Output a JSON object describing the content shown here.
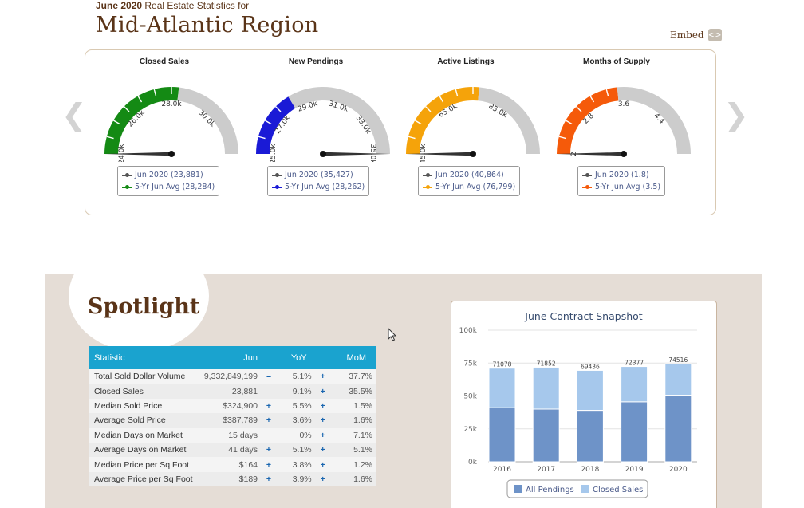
{
  "header": {
    "subtitle_bold": "June 2020",
    "subtitle_rest": "Real Estate Statistics for",
    "title": "Mid-Atlantic Region"
  },
  "embed": {
    "label": "Embed",
    "icon": "embed-code-icon"
  },
  "nav": {
    "prev_icon": "chevron-left-icon",
    "next_icon": "chevron-right-icon",
    "prev_glyph": "❮",
    "next_glyph": "❯"
  },
  "colors": {
    "brand_brown": "#5a3418",
    "table_header": "#1aa3cf",
    "gauge_gray": "#cccccc",
    "all_pendings": "#6e93c8",
    "closed_sales": "#a6c8ec"
  },
  "gauges": [
    {
      "title": "Closed Sales",
      "color": "#148a14",
      "min": 24000,
      "max": 32000,
      "avg": 28284,
      "needle": 23881,
      "ticks": [
        {
          "value": 24000,
          "label": "24.0k"
        },
        {
          "value": 26000,
          "label": "26.0k"
        },
        {
          "value": 28000,
          "label": "28.0k"
        },
        {
          "value": 30000,
          "label": "30.0k"
        }
      ],
      "legend": {
        "current": "Jun 2020 (23,881)",
        "average": "5-Yr Jun Avg (28,284)"
      }
    },
    {
      "title": "New Pendings",
      "color": "#1a1ad6",
      "min": 25000,
      "max": 35000,
      "avg": 28262,
      "needle": 35427,
      "ticks": [
        {
          "value": 25000,
          "label": "25.0k"
        },
        {
          "value": 27000,
          "label": "27.0k"
        },
        {
          "value": 29000,
          "label": "29.0k"
        },
        {
          "value": 31000,
          "label": "31.0k"
        },
        {
          "value": 33000,
          "label": "33.0k"
        },
        {
          "value": 35000,
          "label": "35.0k"
        }
      ],
      "legend": {
        "current": "Jun 2020 (35,427)",
        "average": "5-Yr Jun Avg (28,262)"
      }
    },
    {
      "title": "Active Listings",
      "color": "#f5a30a",
      "min": 45000,
      "max": 105000,
      "avg": 76799,
      "needle": 40864,
      "ticks": [
        {
          "value": 45000,
          "label": "45.0k"
        },
        {
          "value": 65000,
          "label": "65.0k"
        },
        {
          "value": 85000,
          "label": "85.0k"
        }
      ],
      "legend": {
        "current": "Jun 2020 (40,864)",
        "average": "5-Yr Jun Avg (76,799)"
      }
    },
    {
      "title": "Months of Supply",
      "color": "#f55a0a",
      "min": 2,
      "max": 5.2,
      "avg": 3.5,
      "needle": 1.8,
      "ticks": [
        {
          "value": 2,
          "label": "2"
        },
        {
          "value": 2.8,
          "label": "2.8"
        },
        {
          "value": 3.6,
          "label": "3.6"
        },
        {
          "value": 4.4,
          "label": "4.4"
        }
      ],
      "legend": {
        "current": "Jun 2020 (1.8)",
        "average": "5-Yr Jun Avg (3.5)"
      }
    }
  ],
  "spotlight": {
    "title": "Spotlight",
    "columns": [
      "Statistic",
      "Jun",
      "YoY",
      "MoM"
    ],
    "rows": [
      {
        "label": "Total Sold Dollar Volume",
        "jun": "9,332,849,199",
        "yoy_sign": "–",
        "yoy": "5.1%",
        "mom_sign": "+",
        "mom": "37.7%"
      },
      {
        "label": "Closed Sales",
        "jun": "23,881",
        "yoy_sign": "–",
        "yoy": "9.1%",
        "mom_sign": "+",
        "mom": "35.5%"
      },
      {
        "label": "Median Sold Price",
        "jun": "$324,900",
        "yoy_sign": "+",
        "yoy": "5.5%",
        "mom_sign": "+",
        "mom": "1.5%"
      },
      {
        "label": "Average Sold Price",
        "jun": "$387,789",
        "yoy_sign": "+",
        "yoy": "3.6%",
        "mom_sign": "+",
        "mom": "1.6%"
      },
      {
        "label": "Median Days on Market",
        "jun": "15 days",
        "yoy_sign": "",
        "yoy": "0%",
        "mom_sign": "+",
        "mom": "7.1%"
      },
      {
        "label": "Average Days on Market",
        "jun": "41 days",
        "yoy_sign": "+",
        "yoy": "5.1%",
        "mom_sign": "+",
        "mom": "5.1%"
      },
      {
        "label": "Median Price per Sq Foot",
        "jun": "$164",
        "yoy_sign": "+",
        "yoy": "3.8%",
        "mom_sign": "+",
        "mom": "1.2%"
      },
      {
        "label": "Average Price per Sq Foot",
        "jun": "$189",
        "yoy_sign": "+",
        "yoy": "3.9%",
        "mom_sign": "+",
        "mom": "1.6%"
      }
    ]
  },
  "chart_data": {
    "type": "bar",
    "title": "June Contract Snapshot",
    "categories": [
      "2016",
      "2017",
      "2018",
      "2019",
      "2020"
    ],
    "series": [
      {
        "name": "All Pendings",
        "values": [
          71078,
          71852,
          69436,
          72377,
          74516
        ]
      },
      {
        "name": "Closed Sales",
        "values": [
          41000,
          40000,
          39000,
          45500,
          50500
        ]
      }
    ],
    "totals_labels": [
      "71078",
      "71852",
      "69436",
      "72377",
      "74516"
    ],
    "yticks": [
      {
        "value": 0,
        "label": "0k"
      },
      {
        "value": 25000,
        "label": "25k"
      },
      {
        "value": 50000,
        "label": "50k"
      },
      {
        "value": 75000,
        "label": "75k"
      },
      {
        "value": 100000,
        "label": "100k"
      }
    ],
    "ylim": [
      0,
      100000
    ],
    "legend_position": "bottom",
    "grid": true
  }
}
